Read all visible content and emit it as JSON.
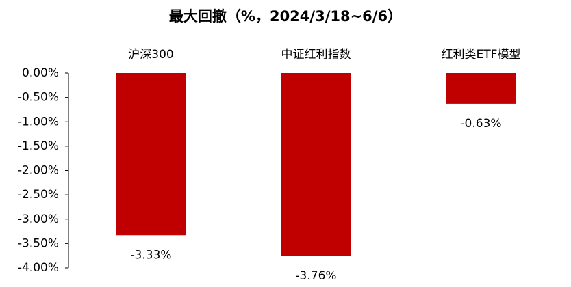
{
  "chart_data": {
    "type": "bar",
    "title": "最大回撤（%，2024/3/18~6/6）",
    "categories": [
      "沪深300",
      "中证红利指数",
      "红利类ETF模型"
    ],
    "values": [
      -3.33,
      -3.76,
      -0.63
    ],
    "value_labels": [
      "-3.33%",
      "-3.76%",
      "-0.63%"
    ],
    "color": "#c00000",
    "ylim": [
      -4,
      0
    ],
    "yticks": [
      {
        "value": 0,
        "label": "0.00%"
      },
      {
        "value": -0.5,
        "label": "-0.50%"
      },
      {
        "value": -1,
        "label": "-1.00%"
      },
      {
        "value": -1.5,
        "label": "-1.50%"
      },
      {
        "value": -2,
        "label": "-2.00%"
      },
      {
        "value": -2.5,
        "label": "-2.50%"
      },
      {
        "value": -3,
        "label": "-3.00%"
      },
      {
        "value": -3.5,
        "label": "-3.50%"
      },
      {
        "value": -4,
        "label": "-4.00%"
      }
    ],
    "grid": false
  }
}
